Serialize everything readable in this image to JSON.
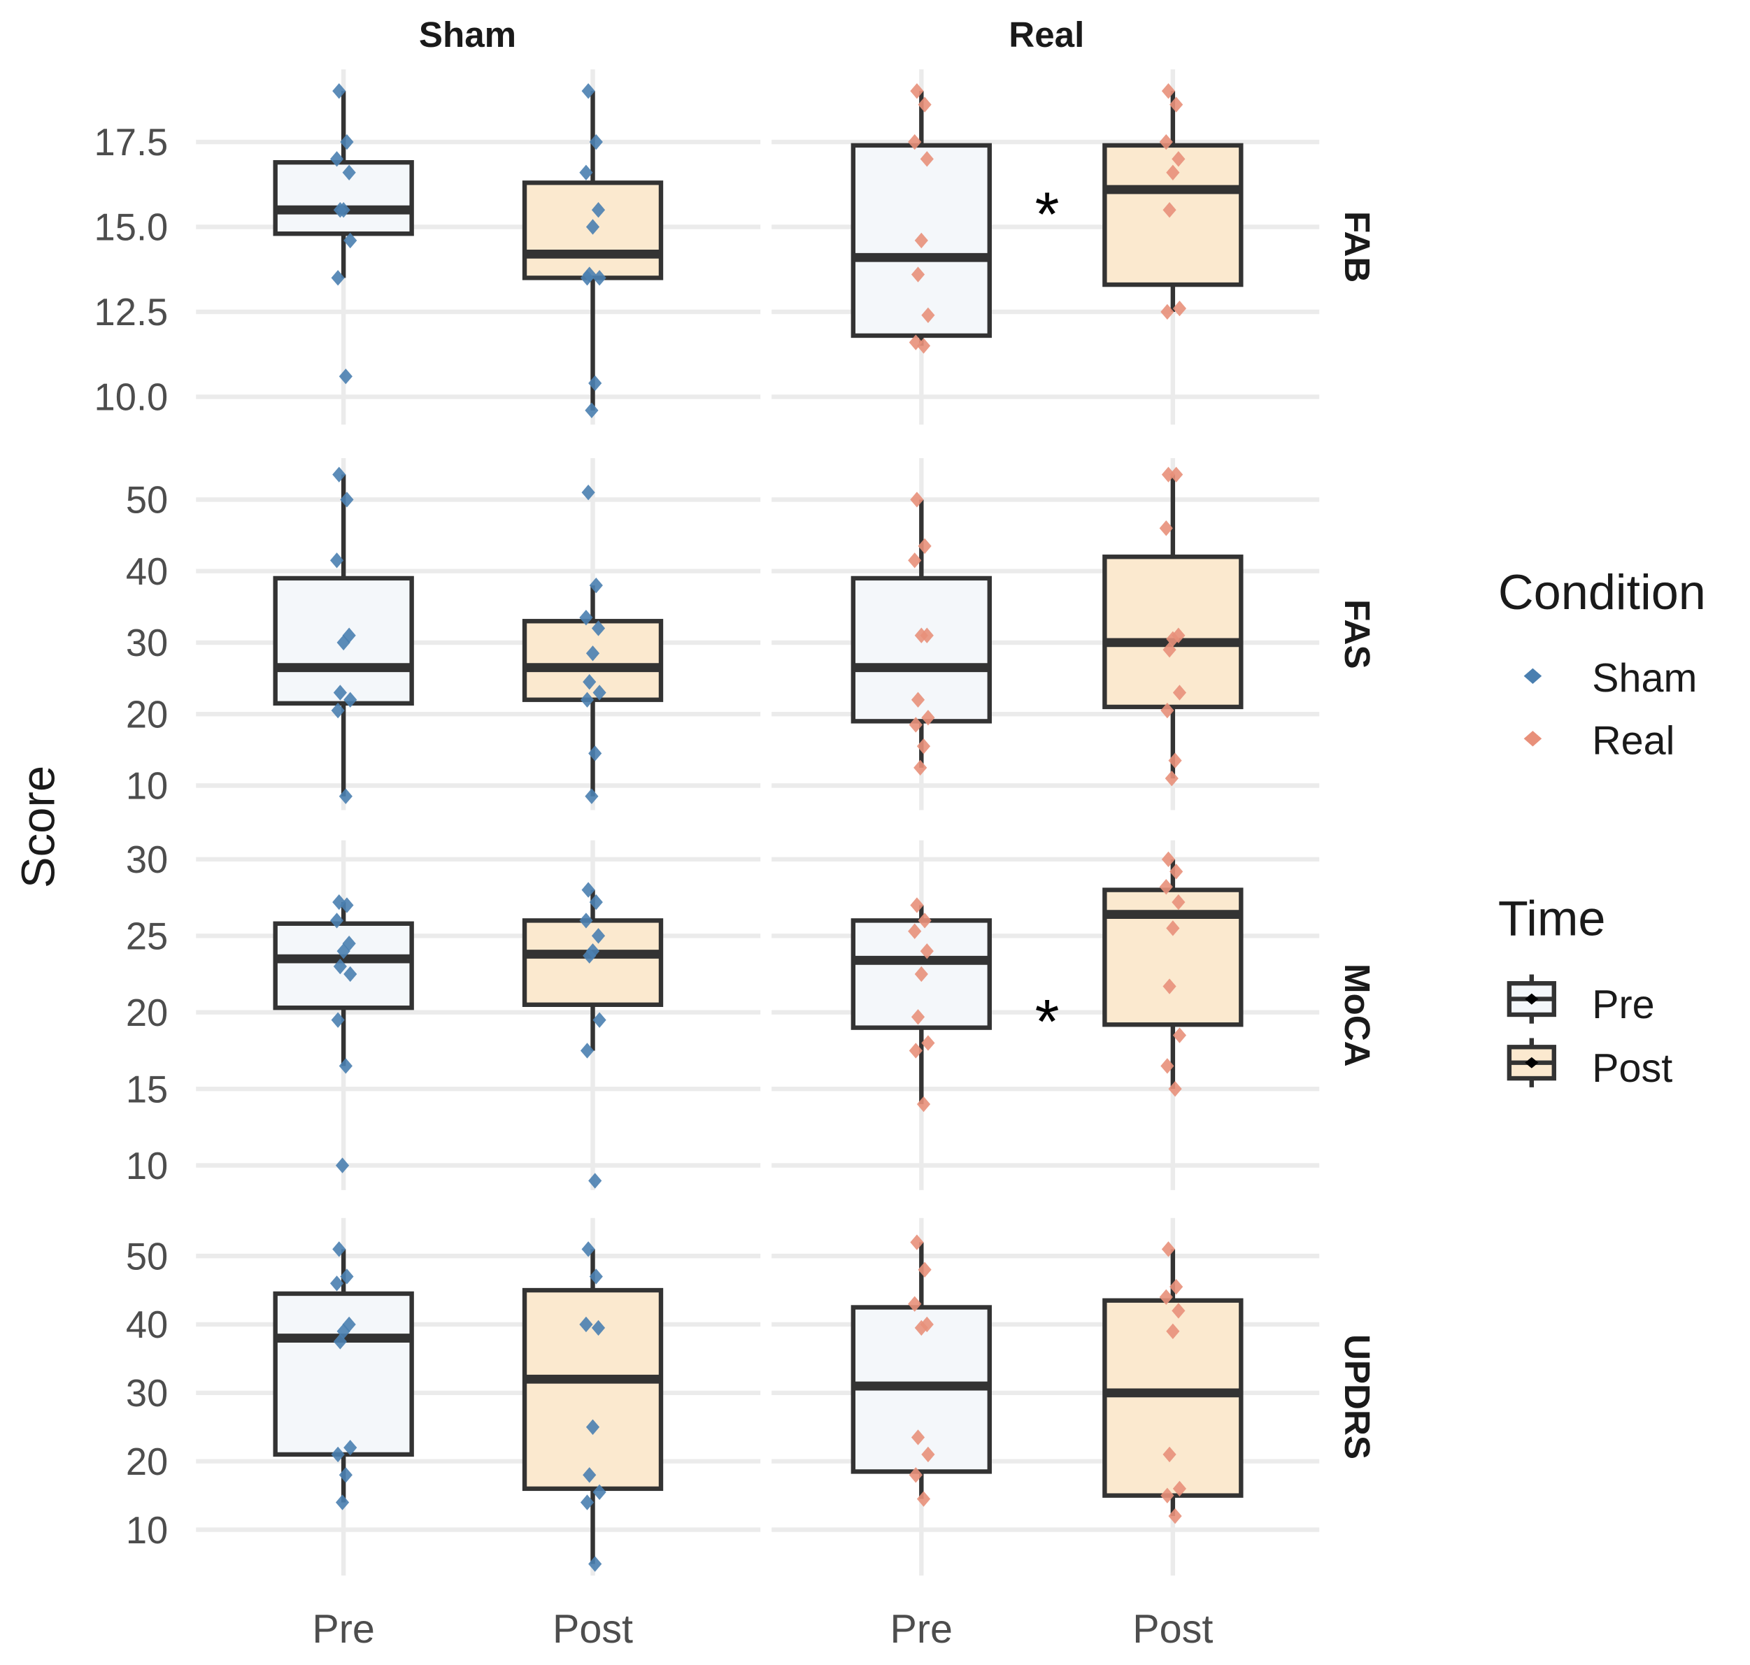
{
  "chart_data": {
    "type": "boxplot",
    "ylabel": "Score",
    "xlabel": "",
    "columns": [
      "Sham",
      "Real"
    ],
    "x_categories": [
      "Pre",
      "Post"
    ],
    "colors": {
      "Sham": "#4a7fb0",
      "Real": "#e8907a",
      "Pre_fill": "#f4f7fa",
      "Post_fill": "#fbe9cf",
      "box_line": "#333333",
      "grid": "#ebebeb"
    },
    "significance_marker": "*",
    "legend": {
      "placement": "right",
      "condition": {
        "title": "Condition",
        "items": [
          "Sham",
          "Real"
        ]
      },
      "time": {
        "title": "Time",
        "items": [
          "Pre",
          "Post"
        ]
      }
    },
    "rows": [
      {
        "name": "FAB",
        "ylim": [
          9.18,
          19.64
        ],
        "ticks": [
          "10.0",
          "12.5",
          "15.0",
          "17.5"
        ],
        "tick_values": [
          10,
          12.5,
          15,
          17.5
        ],
        "significant": {
          "Sham": false,
          "Real": true
        },
        "groups": {
          "Sham": {
            "Pre": {
              "whisker_low": 13.5,
              "q1": 14.8,
              "median": 15.5,
              "q3": 16.9,
              "whisker_high": 19,
              "points": [
                19,
                17.5,
                17,
                16.6,
                15.5,
                15.5,
                14.6,
                13.5,
                10.6
              ]
            },
            "Post": {
              "whisker_low": 9.6,
              "q1": 13.5,
              "median": 14.2,
              "q3": 16.3,
              "whisker_high": 19,
              "points": [
                19,
                17.5,
                16.6,
                15.5,
                15,
                13.6,
                13.5,
                13.5,
                10.4,
                9.6
              ]
            }
          },
          "Real": {
            "Pre": {
              "whisker_low": 11.5,
              "q1": 11.8,
              "median": 14.1,
              "q3": 17.4,
              "whisker_high": 19,
              "points": [
                19,
                18.6,
                17.5,
                17,
                14.6,
                13.6,
                12.4,
                11.6,
                11.5
              ]
            },
            "Post": {
              "whisker_low": 12.5,
              "q1": 13.3,
              "median": 16.1,
              "q3": 17.4,
              "whisker_high": 19,
              "points": [
                19,
                18.6,
                17.5,
                17,
                16.6,
                15.5,
                12.6,
                12.5
              ]
            }
          }
        }
      },
      {
        "name": "FAS",
        "ylim": [
          6.56,
          55.8
        ],
        "ticks": [
          "10",
          "20",
          "30",
          "40",
          "50"
        ],
        "tick_values": [
          10,
          20,
          30,
          40,
          50
        ],
        "significant": {
          "Sham": false,
          "Real": false
        },
        "groups": {
          "Sham": {
            "Pre": {
              "whisker_low": 8.5,
              "q1": 21.5,
              "median": 26.5,
              "q3": 39,
              "whisker_high": 53.5,
              "points": [
                53.5,
                50,
                41.5,
                31,
                30,
                23,
                22,
                20.5,
                8.5
              ]
            },
            "Post": {
              "whisker_low": 8.5,
              "q1": 22,
              "median": 26.5,
              "q3": 33,
              "whisker_high": 38,
              "points": [
                51,
                38,
                33.5,
                32,
                28.5,
                24.5,
                23,
                22,
                14.5,
                8.5
              ]
            }
          },
          "Real": {
            "Pre": {
              "whisker_low": 12.5,
              "q1": 19,
              "median": 26.5,
              "q3": 39,
              "whisker_high": 50,
              "points": [
                50,
                43.5,
                41.5,
                31,
                31,
                22,
                19.5,
                18.5,
                15.5,
                12.5
              ]
            },
            "Post": {
              "whisker_low": 11,
              "q1": 21,
              "median": 30,
              "q3": 42,
              "whisker_high": 53.5,
              "points": [
                53.5,
                53.5,
                46,
                31,
                30.5,
                29,
                23,
                20.5,
                13.5,
                11
              ]
            }
          }
        }
      },
      {
        "name": "MoCA",
        "ylim": [
          8.39,
          31.24
        ],
        "ticks": [
          "10",
          "15",
          "20",
          "25",
          "30"
        ],
        "tick_values": [
          10,
          15,
          20,
          25,
          30
        ],
        "significant": {
          "Sham": false,
          "Real": true
        },
        "groups": {
          "Sham": {
            "Pre": {
              "whisker_low": 16.5,
              "q1": 20.3,
              "median": 23.5,
              "q3": 25.8,
              "whisker_high": 27.2,
              "points": [
                27.2,
                27,
                26,
                24.5,
                24,
                23,
                22.5,
                19.5,
                16.5,
                10
              ]
            },
            "Post": {
              "whisker_low": 17.5,
              "q1": 20.5,
              "median": 23.8,
              "q3": 26,
              "whisker_high": 28,
              "points": [
                28,
                27.2,
                26,
                25,
                24,
                23.7,
                19.5,
                17.5,
                9
              ]
            }
          },
          "Real": {
            "Pre": {
              "whisker_low": 14,
              "q1": 19,
              "median": 23.4,
              "q3": 26,
              "whisker_high": 27,
              "points": [
                27,
                26,
                25.3,
                24,
                22.5,
                19.7,
                18,
                17.5,
                14
              ]
            },
            "Post": {
              "whisker_low": 15,
              "q1": 19.2,
              "median": 26.4,
              "q3": 28,
              "whisker_high": 30,
              "points": [
                30,
                29.2,
                28.2,
                27.2,
                25.5,
                21.7,
                18.5,
                16.5,
                15
              ]
            }
          }
        }
      },
      {
        "name": "UPDRS",
        "ylim": [
          3.3,
          55.55
        ],
        "ticks": [
          "10",
          "20",
          "30",
          "40",
          "50"
        ],
        "tick_values": [
          10,
          20,
          30,
          40,
          50
        ],
        "significant": {
          "Sham": false,
          "Real": false
        },
        "groups": {
          "Sham": {
            "Pre": {
              "whisker_low": 14,
              "q1": 21,
              "median": 38,
              "q3": 44.5,
              "whisker_high": 51,
              "points": [
                51,
                47,
                46,
                40,
                39,
                37.5,
                22,
                21,
                18,
                14
              ]
            },
            "Post": {
              "whisker_low": 5,
              "q1": 16,
              "median": 32,
              "q3": 45,
              "whisker_high": 51,
              "points": [
                51,
                47,
                40,
                39.5,
                25,
                18,
                15.5,
                14,
                5
              ]
            }
          },
          "Real": {
            "Pre": {
              "whisker_low": 14.5,
              "q1": 18.5,
              "median": 31,
              "q3": 42.5,
              "whisker_high": 52,
              "points": [
                52,
                48,
                43,
                40,
                39.5,
                23.5,
                21,
                18,
                14.5
              ]
            },
            "Post": {
              "whisker_low": 12,
              "q1": 15,
              "median": 30,
              "q3": 43.5,
              "whisker_high": 51,
              "points": [
                51,
                45.5,
                44,
                42,
                39,
                21,
                16,
                15,
                12
              ]
            }
          }
        }
      }
    ]
  }
}
